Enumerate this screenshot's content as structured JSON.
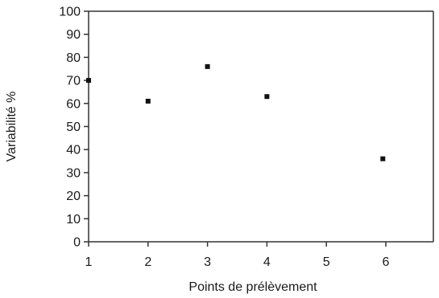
{
  "chart_data": {
    "type": "scatter",
    "title": "",
    "xlabel": "Points de prélèvement",
    "ylabel": "Variabilité %",
    "xlim": [
      1,
      6.8
    ],
    "ylim": [
      0,
      100
    ],
    "x_ticks": [
      1,
      2,
      3,
      4,
      5,
      6
    ],
    "y_ticks": [
      0,
      10,
      20,
      30,
      40,
      50,
      60,
      70,
      80,
      90,
      100
    ],
    "x_tick_labels": [
      "1",
      "2",
      "3",
      "4",
      "5",
      "6"
    ],
    "y_tick_labels": [
      "0",
      "10",
      "20",
      "30",
      "40",
      "50",
      "60",
      "70",
      "80",
      "90",
      "100"
    ],
    "grid": false,
    "legend": "none",
    "marker_color": "#111111",
    "points": [
      {
        "x": 1.0,
        "y": 70
      },
      {
        "x": 2.0,
        "y": 61
      },
      {
        "x": 3.0,
        "y": 76
      },
      {
        "x": 4.0,
        "y": 63
      },
      {
        "x": 5.95,
        "y": 36
      }
    ]
  }
}
